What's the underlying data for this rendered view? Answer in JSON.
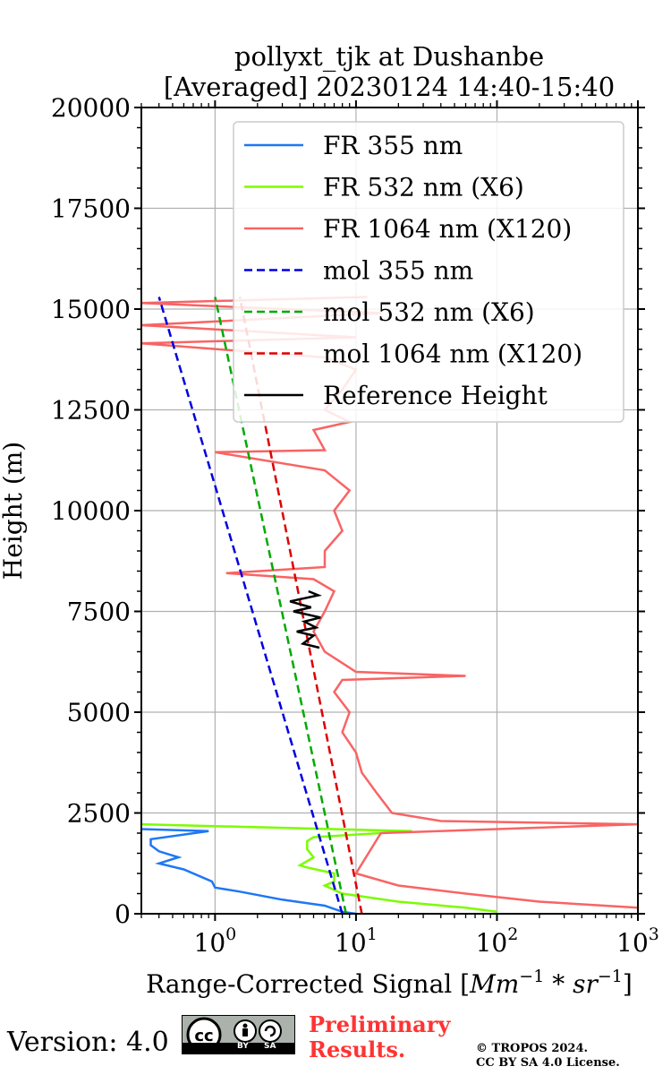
{
  "chart_data": {
    "type": "line",
    "title": "pollyxt_tjk at Dushanbe",
    "subtitle": "[Averaged] 20230124 14:40-15:40",
    "ylabel": "Height (m)",
    "xlabel_prefix": "Range-Corrected Signal [",
    "xlabel_unit": "Mm",
    "xlabel_unit2": "sr",
    "xlabel_suffix": "]",
    "xscale": "log",
    "xlim": [
      0.3,
      1000
    ],
    "ylim": [
      0,
      20000
    ],
    "grid": true,
    "legend_position": "upper-right",
    "yticks": [
      0,
      2500,
      5000,
      7500,
      10000,
      12500,
      15000,
      17500,
      20000
    ],
    "ytick_labels": [
      "0",
      "2500",
      "5000",
      "7500",
      "10000",
      "12500",
      "15000",
      "17500",
      "20000"
    ],
    "xticks": [
      1,
      10,
      100,
      1000
    ],
    "xtick_base": "10",
    "xtick_exponents": [
      "0",
      "1",
      "2",
      "3"
    ],
    "series": [
      {
        "name": "FR 355 nm",
        "color": "#1f77f4",
        "style": "solid",
        "points": [
          [
            10,
            0
          ],
          [
            8,
            50
          ],
          [
            6,
            200
          ],
          [
            3,
            350
          ],
          [
            1.5,
            550
          ],
          [
            1.0,
            650
          ],
          [
            0.95,
            800
          ],
          [
            0.6,
            1100
          ],
          [
            0.4,
            1250
          ],
          [
            0.55,
            1400
          ],
          [
            0.4,
            1550
          ],
          [
            0.35,
            1700
          ],
          [
            0.35,
            1850
          ],
          [
            0.9,
            2050
          ],
          [
            0.3,
            2100
          ]
        ]
      },
      {
        "name": "FR 532 nm (X6)",
        "color": "#7cfc00",
        "style": "solid",
        "points": [
          [
            100,
            50
          ],
          [
            60,
            150
          ],
          [
            20,
            300
          ],
          [
            8,
            500
          ],
          [
            6,
            700
          ],
          [
            7,
            800
          ],
          [
            7,
            1000
          ],
          [
            4.5,
            1150
          ],
          [
            4,
            1200
          ],
          [
            5,
            1400
          ],
          [
            4.5,
            1600
          ],
          [
            4.5,
            1800
          ],
          [
            5,
            1900
          ],
          [
            25,
            2050
          ],
          [
            0.3,
            2220
          ]
        ]
      },
      {
        "name": "FR 1064 nm (X120)",
        "color": "#f86464",
        "style": "solid",
        "points": [
          [
            1000,
            150
          ],
          [
            200,
            300
          ],
          [
            60,
            500
          ],
          [
            20,
            700
          ],
          [
            10,
            1000
          ],
          [
            15,
            2000
          ],
          [
            1000,
            2220
          ],
          [
            40,
            2300
          ],
          [
            18,
            2500
          ],
          [
            14,
            3000
          ],
          [
            11,
            3500
          ],
          [
            10,
            4000
          ],
          [
            8,
            4500
          ],
          [
            9,
            5000
          ],
          [
            7,
            5500
          ],
          [
            8,
            5800
          ],
          [
            60,
            5900
          ],
          [
            10,
            6000
          ],
          [
            6,
            6500
          ],
          [
            5,
            7000
          ],
          [
            6,
            7500
          ],
          [
            7,
            8000
          ],
          [
            5,
            8300
          ],
          [
            1.2,
            8450
          ],
          [
            6,
            8600
          ],
          [
            6,
            9000
          ],
          [
            8,
            9500
          ],
          [
            7,
            10000
          ],
          [
            9,
            10500
          ],
          [
            6,
            11000
          ],
          [
            1.0,
            11450
          ],
          [
            6,
            11500
          ],
          [
            5,
            12000
          ],
          [
            9,
            12200
          ],
          [
            6,
            12500
          ],
          [
            8,
            13000
          ],
          [
            10,
            13500
          ],
          [
            6,
            13800
          ],
          [
            0.3,
            14150
          ],
          [
            10,
            14300
          ],
          [
            0.3,
            14600
          ],
          [
            15,
            14900
          ],
          [
            0.3,
            15150
          ],
          [
            12,
            15300
          ]
        ]
      },
      {
        "name": "mol 355 nm",
        "color": "#0000dd",
        "style": "dashed",
        "points": [
          [
            8.0,
            0
          ],
          [
            0.4,
            15300
          ]
        ]
      },
      {
        "name": "mol 532 nm (X6)",
        "color": "#00aa00",
        "style": "dashed",
        "points": [
          [
            8.5,
            0
          ],
          [
            1.0,
            15300
          ]
        ]
      },
      {
        "name": "mol 1064 nm (X120)",
        "color": "#dd0000",
        "style": "dashed",
        "points": [
          [
            11,
            0
          ],
          [
            1.5,
            15300
          ]
        ]
      },
      {
        "name": "Reference Height",
        "color": "#000000",
        "style": "solid",
        "points": [
          [
            5.5,
            6600
          ],
          [
            4.2,
            6700
          ],
          [
            5.0,
            6900
          ],
          [
            3.8,
            7000
          ],
          [
            5.2,
            7100
          ],
          [
            4.3,
            7250
          ],
          [
            5.6,
            7350
          ],
          [
            3.6,
            7500
          ],
          [
            4.8,
            7600
          ],
          [
            3.4,
            7750
          ],
          [
            5.4,
            7900
          ],
          [
            4.6,
            8000
          ]
        ]
      }
    ]
  },
  "footer": {
    "version": "Version: 4.0",
    "cc_badge": {
      "cc": "cc",
      "by": "BY",
      "sa": "SA"
    },
    "preliminary_line1": "Preliminary",
    "preliminary_line2": "Results.",
    "copyright_line1": "© TROPOS 2024.",
    "copyright_line2": "CC BY SA 4.0 License."
  }
}
